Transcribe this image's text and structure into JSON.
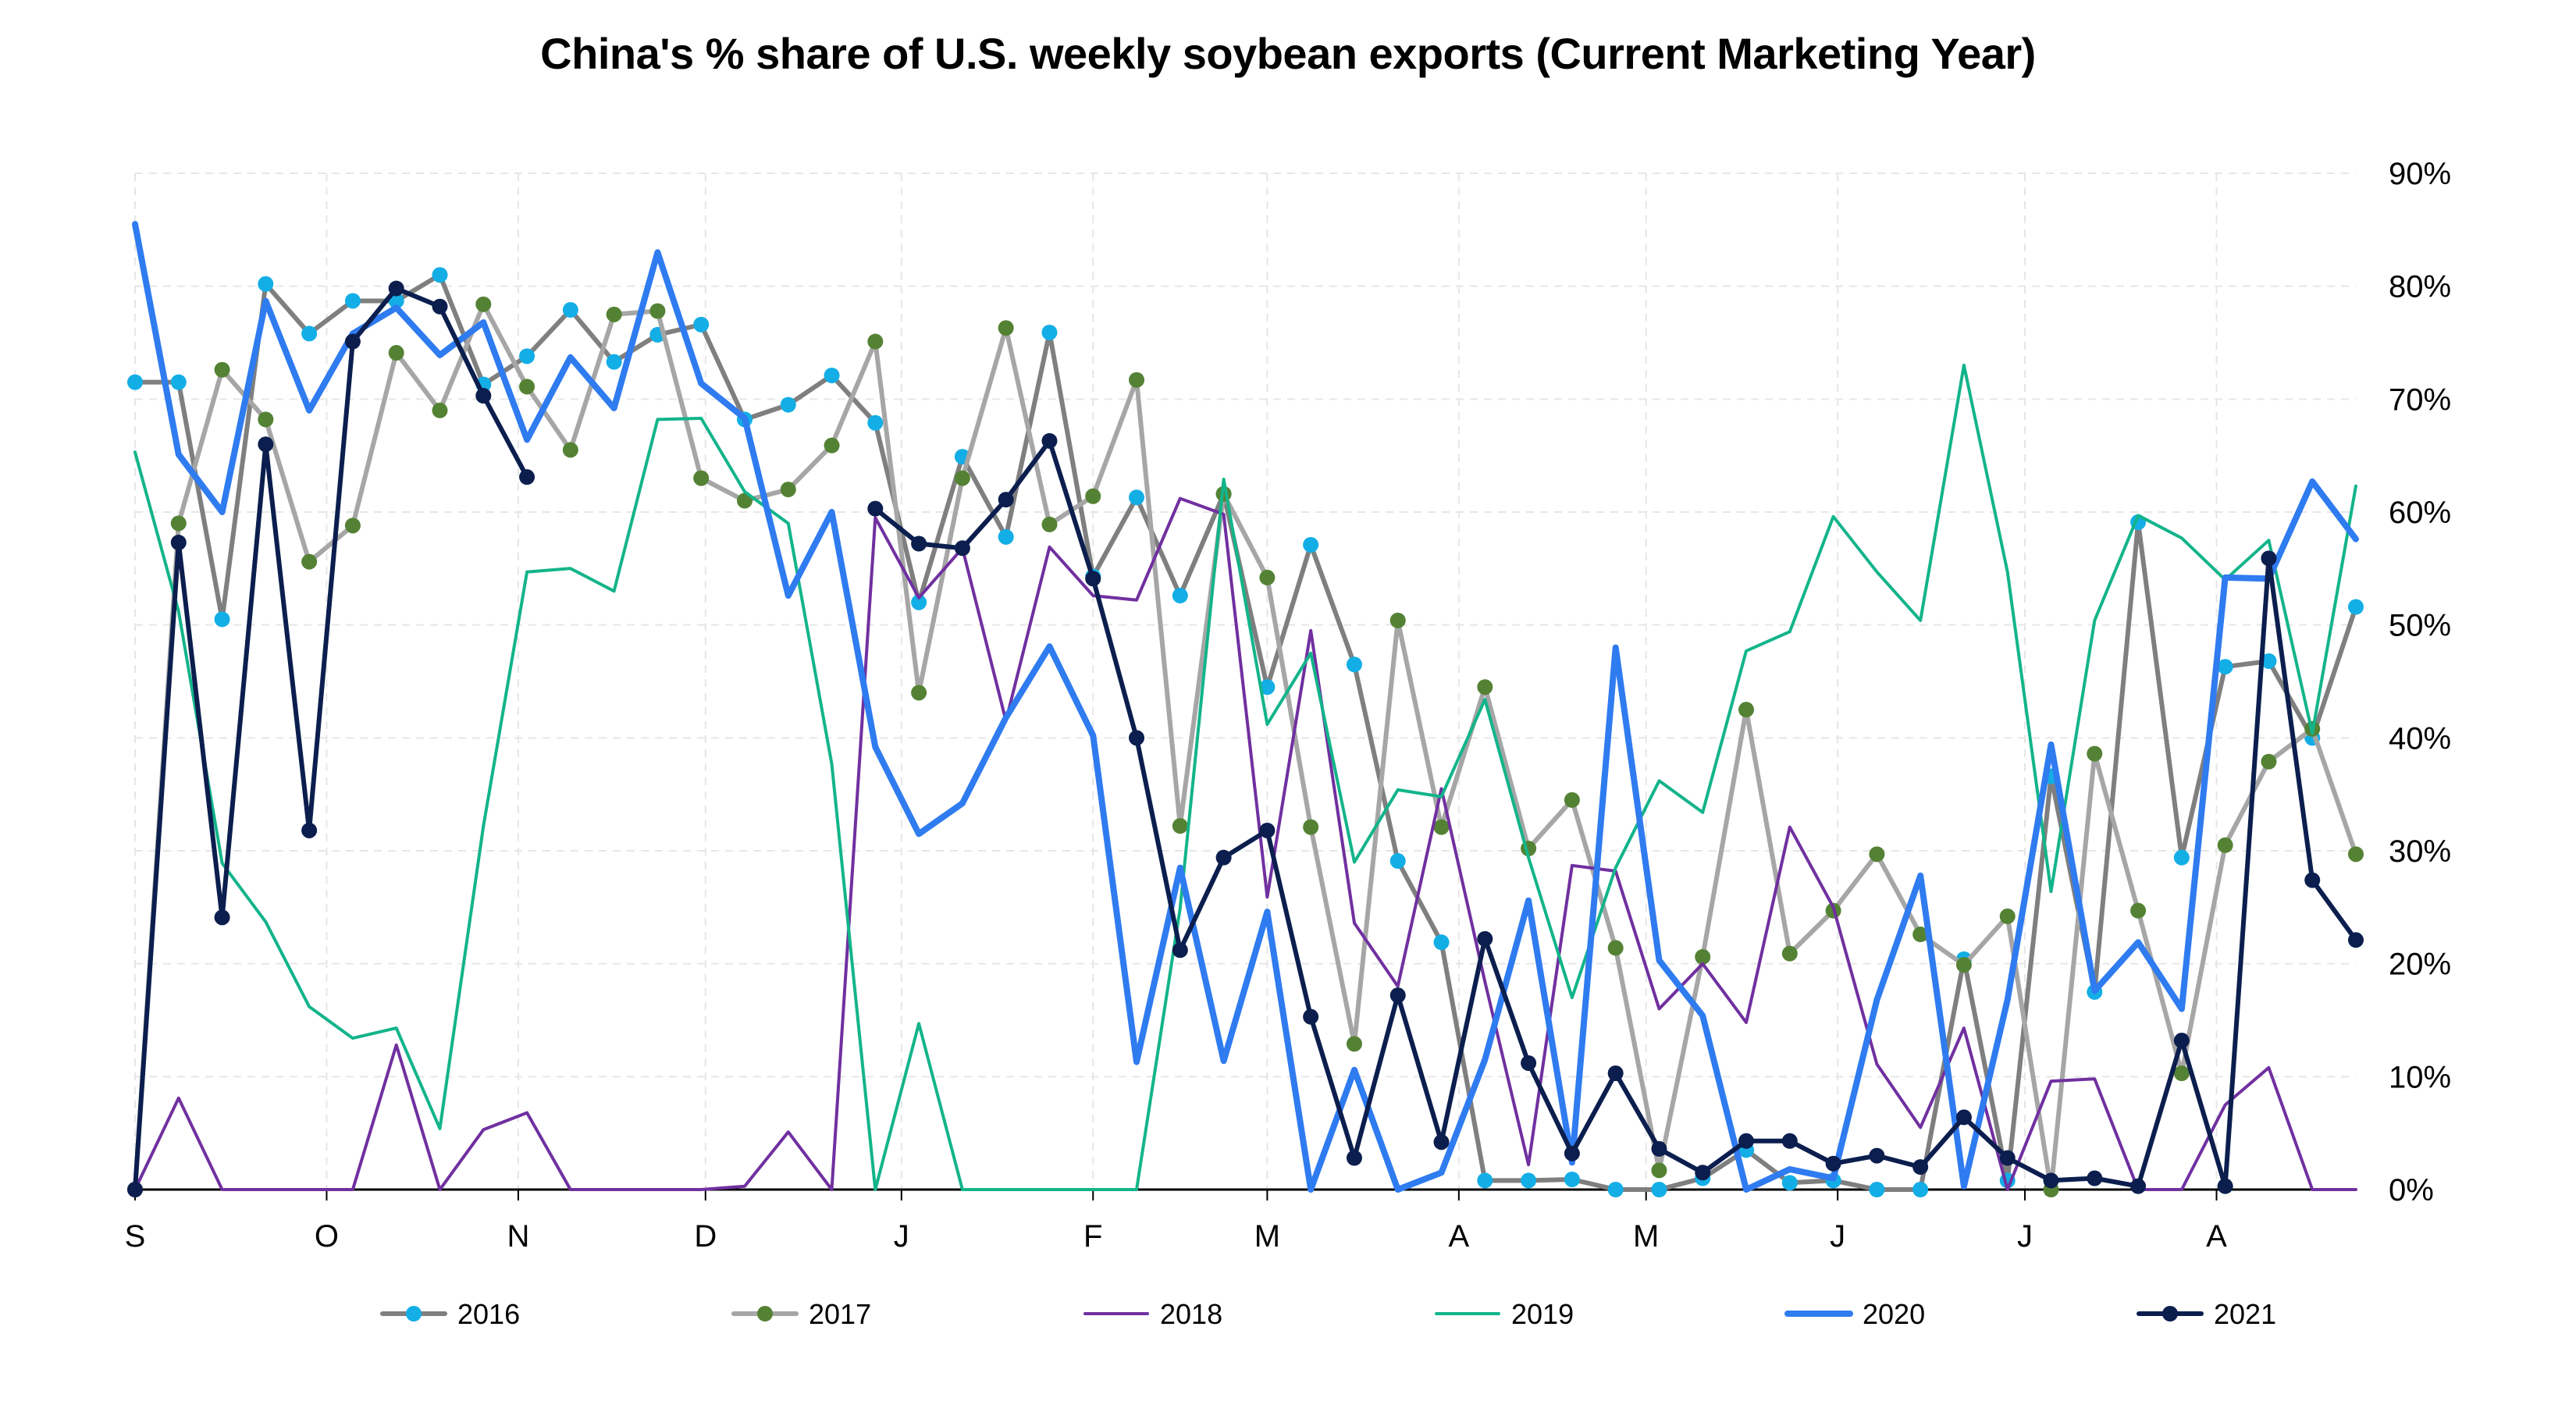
{
  "chart_data": {
    "type": "line",
    "title": "China's % share of U.S. weekly soybean exports (Current Marketing Year)",
    "xlabel": "",
    "ylabel": "",
    "ylim": [
      0,
      90
    ],
    "y_ticks": [
      "0%",
      "10%",
      "20%",
      "30%",
      "40%",
      "50%",
      "60%",
      "70%",
      "80%",
      "90%"
    ],
    "y_axis_side": "right",
    "x_tick_labels": [
      "S",
      "O",
      "N",
      "D",
      "J",
      "F",
      "M",
      "A",
      "M",
      "J",
      "J",
      "A"
    ],
    "x_tick_weeks": [
      0,
      4.4,
      8.8,
      13.1,
      17.6,
      22,
      26,
      30.4,
      34.7,
      39.1,
      43.4,
      47.8
    ],
    "weeks": 52,
    "grid": true,
    "legend_position": "bottom",
    "series": [
      {
        "name": "2016",
        "color": "#7f7f7f",
        "marker_color": "#13aee6",
        "line_width": 6,
        "marker": true,
        "values": [
          71.5,
          71.5,
          50.5,
          80.2,
          75.8,
          78.7,
          78.7,
          81.0,
          71.3,
          73.8,
          77.9,
          73.3,
          75.7,
          76.6,
          68.2,
          69.5,
          72.1,
          67.9,
          52.0,
          64.9,
          57.8,
          75.9,
          54.3,
          61.3,
          52.6,
          61.6,
          44.5,
          57.1,
          46.5,
          29.1,
          21.9,
          0.8,
          0.8,
          0.9,
          0.0,
          0.0,
          1.0,
          3.5,
          0.6,
          0.8,
          0.0,
          0.0,
          20.4,
          0.8,
          36.6,
          17.5,
          59.1,
          29.4,
          46.3,
          46.8,
          40.0,
          51.6
        ]
      },
      {
        "name": "2017",
        "color": "#a6a6a6",
        "marker_color": "#548235",
        "line_width": 6,
        "marker": true,
        "values": [
          0.0,
          59.0,
          72.6,
          68.2,
          55.6,
          58.8,
          74.1,
          69.0,
          78.4,
          71.1,
          65.5,
          77.5,
          77.8,
          63.0,
          61.0,
          62.0,
          65.9,
          75.1,
          44.0,
          63.0,
          76.3,
          58.9,
          61.4,
          71.7,
          32.2,
          61.6,
          54.2,
          32.1,
          12.9,
          50.4,
          32.1,
          44.5,
          30.2,
          34.5,
          21.4,
          1.7,
          20.6,
          42.5,
          20.9,
          24.7,
          29.7,
          22.6,
          19.9,
          24.2,
          0.0,
          38.6,
          24.7,
          10.3,
          30.5,
          37.9,
          40.8,
          29.7
        ]
      },
      {
        "name": "2018",
        "color": "#7030a0",
        "marker_color": "#7030a0",
        "line_width": 4,
        "marker": false,
        "values": [
          0.0,
          8.1,
          0.0,
          0.0,
          0.0,
          0.0,
          12.8,
          0.0,
          5.3,
          6.8,
          0.0,
          0.0,
          0.0,
          0.0,
          0.3,
          5.1,
          0.0,
          59.5,
          52.4,
          56.8,
          41.5,
          56.9,
          52.6,
          52.2,
          61.2,
          59.8,
          25.9,
          49.5,
          23.6,
          18.0,
          35.5,
          18.4,
          2.2,
          28.7,
          28.2,
          16.0,
          20.0,
          14.8,
          32.1,
          25.0,
          11.1,
          5.5,
          14.3,
          0.0,
          9.6,
          9.8,
          0.0,
          0.0,
          7.5,
          10.8,
          0.0,
          0.0
        ]
      },
      {
        "name": "2019",
        "color": "#13b48a",
        "marker_color": "#13b48a",
        "line_width": 4,
        "marker": false,
        "values": [
          65.3,
          51.2,
          28.9,
          23.7,
          16.2,
          13.4,
          14.3,
          5.4,
          32.2,
          54.7,
          55.0,
          53.0,
          68.2,
          68.3,
          61.8,
          59.0,
          37.7,
          0.0,
          14.7,
          0.0,
          0.0,
          0.0,
          0.0,
          0.0,
          24.9,
          62.9,
          41.2,
          47.5,
          29.0,
          35.4,
          34.8,
          43.4,
          29.4,
          17.0,
          28.5,
          36.2,
          33.4,
          47.7,
          49.4,
          59.6,
          54.7,
          50.4,
          73.0,
          54.7,
          26.4,
          50.4,
          59.7,
          57.7,
          54.0,
          57.5,
          40.4,
          62.3
        ]
      },
      {
        "name": "2020",
        "color": "#2f7bf0",
        "marker_color": "#2f7bf0",
        "line_width": 8,
        "marker": false,
        "values": [
          85.5,
          65.1,
          60.0,
          78.7,
          69.0,
          75.8,
          78.1,
          73.9,
          76.8,
          66.4,
          73.7,
          69.2,
          83.0,
          71.4,
          68.3,
          52.6,
          60.0,
          39.2,
          31.5,
          34.2,
          41.8,
          48.1,
          40.2,
          11.3,
          28.5,
          11.4,
          24.6,
          0.0,
          10.6,
          0.0,
          1.5,
          11.5,
          25.6,
          2.4,
          48.0,
          20.3,
          15.4,
          0.0,
          1.8,
          1.0,
          16.8,
          27.8,
          0.3,
          16.8,
          39.4,
          17.6,
          21.9,
          16.0,
          54.2,
          54.1,
          62.7,
          57.6
        ]
      },
      {
        "name": "2021",
        "color": "#0b1e4e",
        "marker_color": "#0b1e4e",
        "line_width": 6,
        "marker": true,
        "values": [
          0.0,
          57.3,
          24.1,
          66.0,
          31.8,
          75.1,
          79.8,
          78.2,
          70.3,
          63.1,
          null,
          null,
          null,
          null,
          null,
          null,
          null,
          60.3,
          57.2,
          56.8,
          61.1,
          66.3,
          54.1,
          40.0,
          21.2,
          29.4,
          31.8,
          15.3,
          2.8,
          17.2,
          4.2,
          22.2,
          11.2,
          3.2,
          10.3,
          3.6,
          1.5,
          4.3,
          4.3,
          2.3,
          3.0,
          2.0,
          6.4,
          2.8,
          0.8,
          1.0,
          0.3,
          13.2,
          0.3,
          55.9,
          27.4,
          22.1
        ]
      }
    ]
  }
}
